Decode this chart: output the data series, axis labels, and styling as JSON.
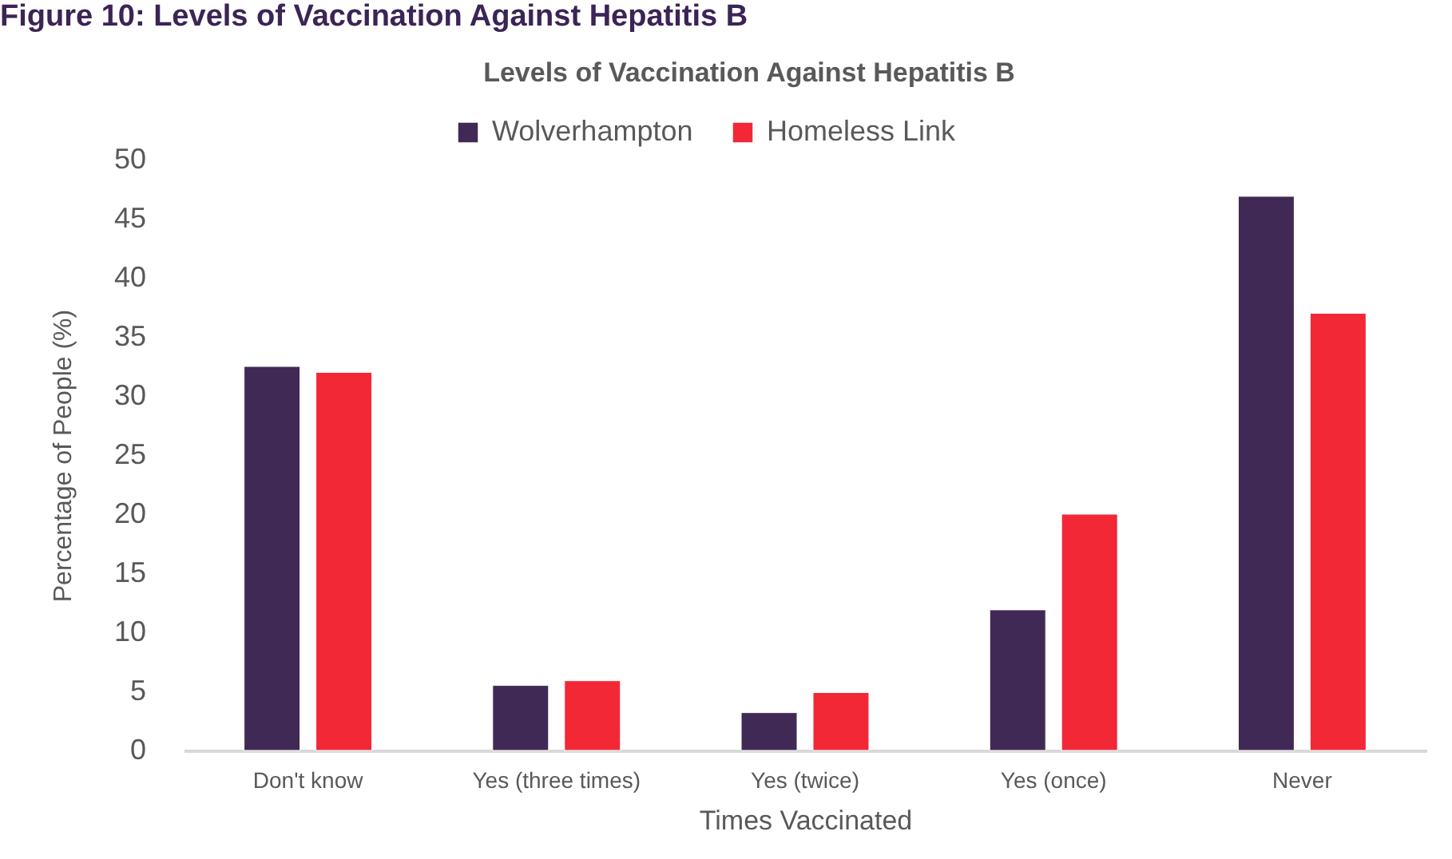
{
  "chart_data": {
    "type": "bar",
    "title": "Levels of Vaccination Against Hepatitis B",
    "xlabel": "Times Vaccinated",
    "ylabel": "Percentage of People (%)",
    "categories": [
      "Don't know",
      "Yes (three times)",
      "Yes (twice)",
      "Yes (once)",
      "Never"
    ],
    "series": [
      {
        "name": "Wolverhampton",
        "color": "#402a55",
        "values": [
          32.5,
          5.5,
          3.2,
          11.9,
          46.9
        ]
      },
      {
        "name": "Homeless Link",
        "color": "#f22837",
        "values": [
          32.0,
          5.9,
          4.9,
          20.0,
          37.0
        ]
      }
    ],
    "ylim": [
      0,
      50
    ],
    "yticks": [
      0,
      5,
      10,
      15,
      20,
      25,
      30,
      35,
      40,
      45,
      50
    ],
    "legend": "top",
    "annotations": [
      "Figure 10: Levels of Vaccination Against Hepatitis B"
    ]
  }
}
